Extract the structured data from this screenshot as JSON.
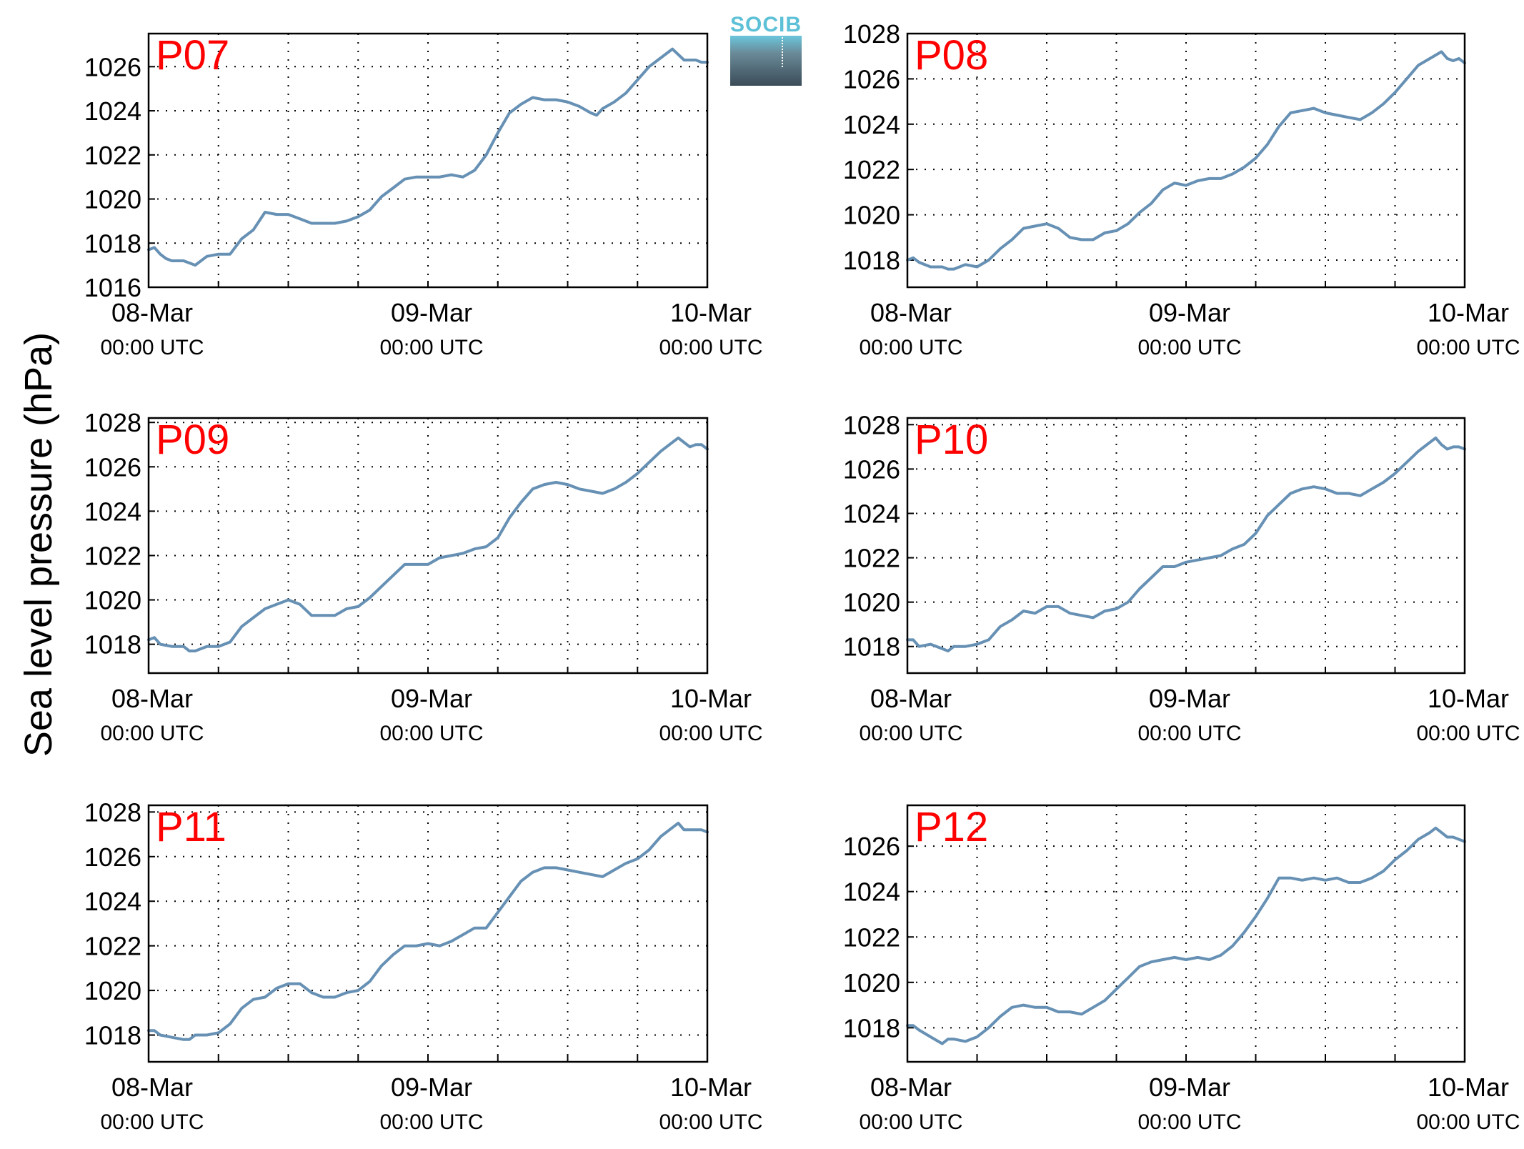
{
  "figure": {
    "ylabel": "Sea level pressure (hPa)",
    "logo_text": "SOCIB"
  },
  "colors": {
    "line": "#6690b4",
    "panel_label": "#ff0000",
    "axis": "#000000",
    "grid": "#000000"
  },
  "chart_data": [
    {
      "type": "line",
      "label": "P07",
      "grid": true,
      "ylim": [
        1016,
        1027.5
      ],
      "yticks": [
        1016,
        1018,
        1020,
        1022,
        1024,
        1026
      ],
      "xlim": [
        0,
        48
      ],
      "xticks": [
        {
          "at": 0,
          "day": "08-Mar",
          "time": "00:00 UTC"
        },
        {
          "at": 24,
          "day": "09-Mar",
          "time": "00:00 UTC"
        },
        {
          "at": 48,
          "day": "10-Mar",
          "time": "00:00 UTC"
        }
      ],
      "x": [
        0,
        0.5,
        1,
        1.5,
        2,
        3,
        3.5,
        4,
        5,
        6,
        7,
        8,
        9,
        10,
        11,
        12,
        13,
        14,
        15,
        16,
        17,
        18,
        19,
        20,
        21,
        22,
        23,
        24,
        25,
        26,
        27,
        28,
        29,
        30,
        31,
        32,
        33,
        34,
        35,
        36,
        37,
        38,
        38.5,
        39,
        40,
        41,
        42,
        43,
        44,
        45,
        46,
        46.5,
        47,
        47.5,
        48
      ],
      "y": [
        1017.7,
        1017.8,
        1017.5,
        1017.3,
        1017.2,
        1017.2,
        1017.1,
        1017.0,
        1017.4,
        1017.5,
        1017.5,
        1018.2,
        1018.6,
        1019.4,
        1019.3,
        1019.3,
        1019.1,
        1018.9,
        1018.9,
        1018.9,
        1019.0,
        1019.2,
        1019.5,
        1020.1,
        1020.5,
        1020.9,
        1021.0,
        1021.0,
        1021.0,
        1021.1,
        1021.0,
        1021.3,
        1022.0,
        1023.0,
        1023.9,
        1024.3,
        1024.6,
        1024.5,
        1024.5,
        1024.4,
        1024.2,
        1023.9,
        1023.8,
        1024.1,
        1024.4,
        1024.8,
        1025.4,
        1026.0,
        1026.4,
        1026.8,
        1026.3,
        1026.3,
        1026.3,
        1026.2,
        1026.2
      ]
    },
    {
      "type": "line",
      "label": "P08",
      "grid": true,
      "ylim": [
        1016.8,
        1028
      ],
      "yticks": [
        1018,
        1020,
        1022,
        1024,
        1026,
        1028
      ],
      "xlim": [
        0,
        48
      ],
      "xticks": [
        {
          "at": 0,
          "day": "08-Mar",
          "time": "00:00 UTC"
        },
        {
          "at": 24,
          "day": "09-Mar",
          "time": "00:00 UTC"
        },
        {
          "at": 48,
          "day": "10-Mar",
          "time": "00:00 UTC"
        }
      ],
      "x": [
        0,
        0.5,
        1,
        2,
        3,
        3.5,
        4,
        5,
        6,
        7,
        8,
        9,
        10,
        11,
        12,
        13,
        14,
        15,
        16,
        17,
        18,
        19,
        20,
        21,
        22,
        23,
        24,
        25,
        26,
        27,
        28,
        29,
        30,
        31,
        32,
        33,
        34,
        35,
        36,
        37,
        38,
        39,
        40,
        41,
        42,
        43,
        44,
        45,
        46,
        46.5,
        47,
        47.5,
        48
      ],
      "y": [
        1018.0,
        1018.1,
        1017.9,
        1017.7,
        1017.7,
        1017.6,
        1017.6,
        1017.8,
        1017.7,
        1018.0,
        1018.5,
        1018.9,
        1019.4,
        1019.5,
        1019.6,
        1019.4,
        1019.0,
        1018.9,
        1018.9,
        1019.2,
        1019.3,
        1019.6,
        1020.1,
        1020.5,
        1021.1,
        1021.4,
        1021.3,
        1021.5,
        1021.6,
        1021.6,
        1021.8,
        1022.1,
        1022.5,
        1023.1,
        1023.9,
        1024.5,
        1024.6,
        1024.7,
        1024.5,
        1024.4,
        1024.3,
        1024.2,
        1024.5,
        1024.9,
        1025.4,
        1026.0,
        1026.6,
        1026.9,
        1027.2,
        1026.9,
        1026.8,
        1026.9,
        1026.7
      ]
    },
    {
      "type": "line",
      "label": "P09",
      "grid": true,
      "ylim": [
        1016.7,
        1028.2
      ],
      "yticks": [
        1018,
        1020,
        1022,
        1024,
        1026,
        1028
      ],
      "xlim": [
        0,
        48
      ],
      "xticks": [
        {
          "at": 0,
          "day": "08-Mar",
          "time": "00:00 UTC"
        },
        {
          "at": 24,
          "day": "09-Mar",
          "time": "00:00 UTC"
        },
        {
          "at": 48,
          "day": "10-Mar",
          "time": "00:00 UTC"
        }
      ],
      "x": [
        0,
        0.5,
        1,
        2,
        3,
        3.5,
        4,
        5,
        6,
        7,
        8,
        9,
        10,
        11,
        12,
        13,
        14,
        15,
        16,
        17,
        18,
        19,
        20,
        21,
        22,
        23,
        24,
        25,
        26,
        27,
        28,
        29,
        30,
        31,
        32,
        33,
        34,
        35,
        36,
        37,
        38,
        39,
        40,
        41,
        42,
        43,
        44,
        45,
        45.5,
        46,
        46.5,
        47,
        47.5,
        48
      ],
      "y": [
        1018.2,
        1018.3,
        1018.0,
        1017.9,
        1017.9,
        1017.7,
        1017.7,
        1017.9,
        1017.9,
        1018.1,
        1018.8,
        1019.2,
        1019.6,
        1019.8,
        1020.0,
        1019.8,
        1019.3,
        1019.3,
        1019.3,
        1019.6,
        1019.7,
        1020.1,
        1020.6,
        1021.1,
        1021.6,
        1021.6,
        1021.6,
        1021.9,
        1022.0,
        1022.1,
        1022.3,
        1022.4,
        1022.8,
        1023.7,
        1024.4,
        1025.0,
        1025.2,
        1025.3,
        1025.2,
        1025.0,
        1024.9,
        1024.8,
        1025.0,
        1025.3,
        1025.7,
        1026.2,
        1026.7,
        1027.1,
        1027.3,
        1027.1,
        1026.9,
        1027.0,
        1027.0,
        1026.8
      ]
    },
    {
      "type": "line",
      "label": "P10",
      "grid": true,
      "ylim": [
        1016.8,
        1028.3
      ],
      "yticks": [
        1018,
        1020,
        1022,
        1024,
        1026,
        1028
      ],
      "xlim": [
        0,
        48
      ],
      "xticks": [
        {
          "at": 0,
          "day": "08-Mar",
          "time": "00:00 UTC"
        },
        {
          "at": 24,
          "day": "09-Mar",
          "time": "00:00 UTC"
        },
        {
          "at": 48,
          "day": "10-Mar",
          "time": "00:00 UTC"
        }
      ],
      "x": [
        0,
        0.5,
        1,
        2,
        3,
        3.5,
        4,
        5,
        6,
        7,
        8,
        9,
        10,
        11,
        12,
        13,
        14,
        15,
        16,
        17,
        18,
        19,
        20,
        21,
        22,
        23,
        24,
        25,
        26,
        27,
        28,
        29,
        30,
        31,
        32,
        33,
        34,
        35,
        36,
        37,
        38,
        39,
        40,
        41,
        42,
        43,
        44,
        45,
        45.5,
        46,
        46.5,
        47,
        47.5,
        48
      ],
      "y": [
        1018.3,
        1018.3,
        1018.0,
        1018.1,
        1017.9,
        1017.8,
        1018.0,
        1018.0,
        1018.1,
        1018.3,
        1018.9,
        1019.2,
        1019.6,
        1019.5,
        1019.8,
        1019.8,
        1019.5,
        1019.4,
        1019.3,
        1019.6,
        1019.7,
        1020.0,
        1020.6,
        1021.1,
        1021.6,
        1021.6,
        1021.8,
        1021.9,
        1022.0,
        1022.1,
        1022.4,
        1022.6,
        1023.1,
        1023.9,
        1024.4,
        1024.9,
        1025.1,
        1025.2,
        1025.1,
        1024.9,
        1024.9,
        1024.8,
        1025.1,
        1025.4,
        1025.8,
        1026.3,
        1026.8,
        1027.2,
        1027.4,
        1027.1,
        1026.9,
        1027.0,
        1027.0,
        1026.9
      ]
    },
    {
      "type": "line",
      "label": "P11",
      "grid": true,
      "ylim": [
        1016.8,
        1028.3
      ],
      "yticks": [
        1018,
        1020,
        1022,
        1024,
        1026,
        1028
      ],
      "xlim": [
        0,
        48
      ],
      "xticks": [
        {
          "at": 0,
          "day": "08-Mar",
          "time": "00:00 UTC"
        },
        {
          "at": 24,
          "day": "09-Mar",
          "time": "00:00 UTC"
        },
        {
          "at": 48,
          "day": "10-Mar",
          "time": "00:00 UTC"
        }
      ],
      "x": [
        0,
        0.5,
        1,
        2,
        3,
        3.5,
        4,
        5,
        6,
        7,
        8,
        9,
        10,
        11,
        12,
        13,
        14,
        15,
        16,
        17,
        18,
        19,
        20,
        21,
        22,
        23,
        24,
        25,
        26,
        27,
        28,
        29,
        30,
        31,
        32,
        33,
        34,
        35,
        36,
        37,
        38,
        39,
        40,
        41,
        42,
        43,
        44,
        45,
        45.5,
        46,
        46.5,
        47,
        47.5,
        48
      ],
      "y": [
        1018.2,
        1018.2,
        1018.0,
        1017.9,
        1017.8,
        1017.8,
        1018.0,
        1018.0,
        1018.1,
        1018.5,
        1019.2,
        1019.6,
        1019.7,
        1020.1,
        1020.3,
        1020.3,
        1019.9,
        1019.7,
        1019.7,
        1019.9,
        1020.0,
        1020.4,
        1021.1,
        1021.6,
        1022.0,
        1022.0,
        1022.1,
        1022.0,
        1022.2,
        1022.5,
        1022.8,
        1022.8,
        1023.5,
        1024.2,
        1024.9,
        1025.3,
        1025.5,
        1025.5,
        1025.4,
        1025.3,
        1025.2,
        1025.1,
        1025.4,
        1025.7,
        1025.9,
        1026.3,
        1026.9,
        1027.3,
        1027.5,
        1027.2,
        1027.2,
        1027.2,
        1027.2,
        1027.1
      ]
    },
    {
      "type": "line",
      "label": "P12",
      "grid": true,
      "ylim": [
        1016.5,
        1027.8
      ],
      "yticks": [
        1018,
        1020,
        1022,
        1024,
        1026
      ],
      "xlim": [
        0,
        48
      ],
      "xticks": [
        {
          "at": 0,
          "day": "08-Mar",
          "time": "00:00 UTC"
        },
        {
          "at": 24,
          "day": "09-Mar",
          "time": "00:00 UTC"
        },
        {
          "at": 48,
          "day": "10-Mar",
          "time": "00:00 UTC"
        }
      ],
      "x": [
        0,
        0.5,
        1,
        2,
        3,
        3.5,
        4,
        5,
        6,
        7,
        8,
        9,
        10,
        11,
        12,
        13,
        14,
        15,
        16,
        17,
        18,
        19,
        20,
        21,
        22,
        23,
        24,
        25,
        26,
        27,
        28,
        29,
        30,
        31,
        32,
        33,
        34,
        35,
        36,
        37,
        38,
        39,
        40,
        41,
        42,
        43,
        44,
        45,
        45.5,
        46,
        46.5,
        47,
        47.5,
        48
      ],
      "y": [
        1018.1,
        1018.1,
        1017.9,
        1017.6,
        1017.3,
        1017.5,
        1017.5,
        1017.4,
        1017.6,
        1018.0,
        1018.5,
        1018.9,
        1019.0,
        1018.9,
        1018.9,
        1018.7,
        1018.7,
        1018.6,
        1018.9,
        1019.2,
        1019.7,
        1020.2,
        1020.7,
        1020.9,
        1021.0,
        1021.1,
        1021.0,
        1021.1,
        1021.0,
        1021.2,
        1021.6,
        1022.2,
        1022.9,
        1023.7,
        1024.6,
        1024.6,
        1024.5,
        1024.6,
        1024.5,
        1024.6,
        1024.4,
        1024.4,
        1024.6,
        1024.9,
        1025.4,
        1025.8,
        1026.3,
        1026.6,
        1026.8,
        1026.6,
        1026.4,
        1026.4,
        1026.3,
        1026.2
      ]
    }
  ]
}
